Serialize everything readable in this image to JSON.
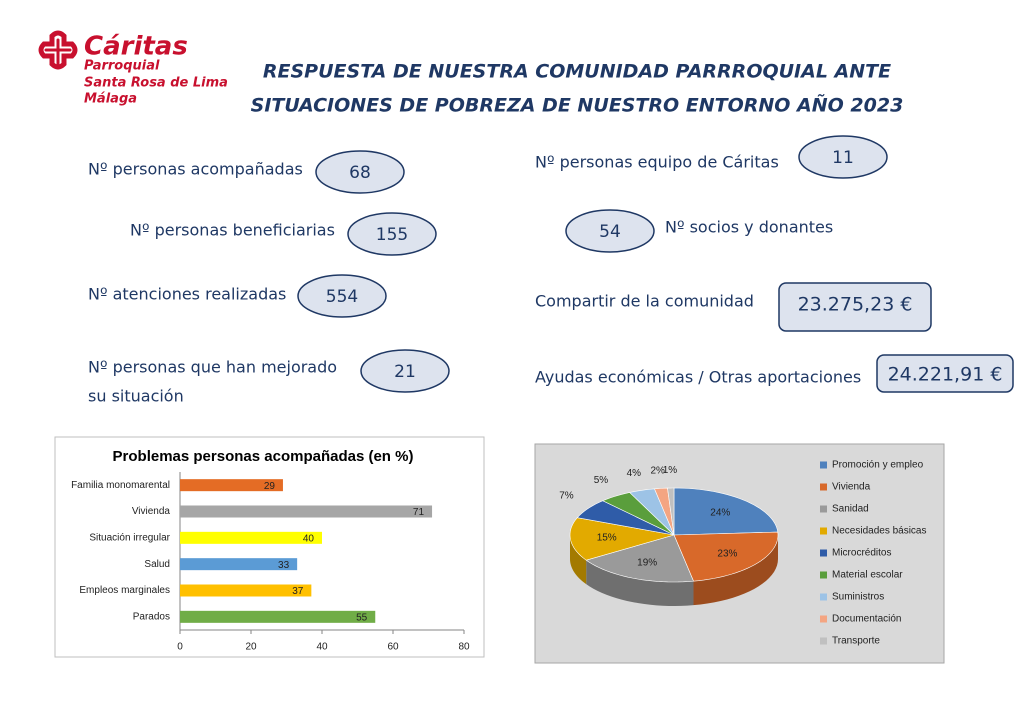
{
  "header": {
    "logo_name": "Cáritas",
    "logo_lines": [
      "Parroquial",
      "Santa Rosa de Lima",
      "Málaga"
    ],
    "title_lines": [
      "RESPUESTA DE NUESTRA COMUNIDAD PARRROQUIAL ANTE",
      "SITUACIONES DE POBREZA DE NUESTRO ENTORNO AÑO 2023"
    ]
  },
  "stats": [
    {
      "label": "Nº personas acompañadas",
      "value": "68"
    },
    {
      "label": "Nº personas beneficiarias",
      "value": "155"
    },
    {
      "label": "Nº atenciones realizadas",
      "value": "554"
    },
    {
      "label": [
        "Nº personas que han mejorado",
        "su situación"
      ],
      "value": "21"
    },
    {
      "label": "Nº personas equipo de Cáritas",
      "value": "11"
    },
    {
      "label": "Nº socios y donantes",
      "value": "54"
    },
    {
      "label": "Compartir de la comunidad",
      "value": "23.275,23 €"
    },
    {
      "label": "Ayudas económicas / Otras aportaciones",
      "value": "24.221,91 €"
    }
  ],
  "chart_data": [
    {
      "type": "bar",
      "orientation": "horizontal",
      "title": "Problemas personas acompañadas (en %)",
      "categories": [
        "Familia monomarental",
        "Vivienda",
        "Situación irregular",
        "Salud",
        "Empleos marginales",
        "Parados"
      ],
      "values": [
        29,
        71,
        40,
        33,
        37,
        55
      ],
      "colors": [
        "#e46c25",
        "#a6a6a6",
        "#ffff00",
        "#5b9bd5",
        "#ffc000",
        "#70ad47"
      ],
      "xlim": [
        0,
        80
      ],
      "xticks": [
        0,
        20,
        40,
        60,
        80
      ],
      "grid": false
    },
    {
      "type": "pie",
      "legend": "right",
      "categories": [
        "Promoción y empleo",
        "Vivienda",
        "Sanidad",
        "Necesidades básicas",
        "Microcréditos",
        "Material escolar",
        "Suministros",
        "Documentación",
        "Transporte"
      ],
      "values": [
        24,
        23,
        19,
        15,
        7,
        5,
        4,
        2,
        1
      ],
      "value_labels": [
        "24%",
        "23%",
        "19%",
        "15%",
        "7%",
        "5%",
        "4%",
        "2%",
        "1%"
      ],
      "colors": [
        "#4f81bd",
        "#d8692a",
        "#9a9a9a",
        "#e2aa00",
        "#2f5ca8",
        "#5a9e3c",
        "#9dc3e6",
        "#f4a582",
        "#c0c0c0"
      ]
    }
  ]
}
